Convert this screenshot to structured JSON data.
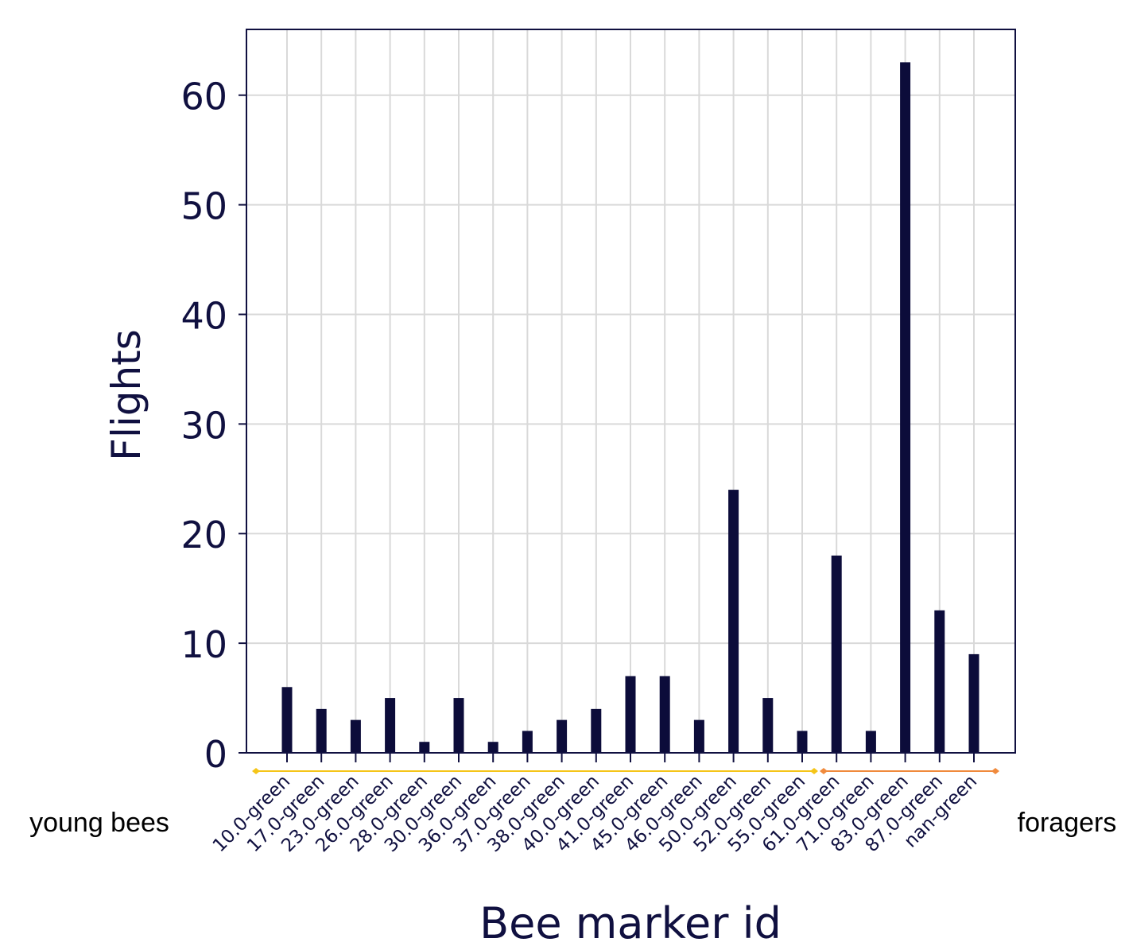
{
  "chart_data": {
    "type": "bar",
    "title": "",
    "xlabel": "Bee marker id",
    "ylabel": "Flights",
    "ylim": [
      0,
      66
    ],
    "yticks": [
      0,
      10,
      20,
      30,
      40,
      50,
      60
    ],
    "grid": true,
    "categories": [
      "10.0-green",
      "17.0-green",
      "23.0-green",
      "26.0-green",
      "28.0-green",
      "30.0-green",
      "36.0-green",
      "37.0-green",
      "38.0-green",
      "40.0-green",
      "41.0-green",
      "45.0-green",
      "46.0-green",
      "50.0-green",
      "52.0-green",
      "55.0-green",
      "61.0-green",
      "71.0-green",
      "83.0-green",
      "87.0-green",
      "nan-green"
    ],
    "values": [
      6,
      4,
      3,
      5,
      1,
      5,
      1,
      2,
      3,
      4,
      7,
      7,
      3,
      24,
      5,
      2,
      18,
      2,
      63,
      13,
      9
    ],
    "groups": [
      {
        "label": "young bees",
        "from": "10.0-green",
        "to": "55.0-green",
        "color": "#f5c518"
      },
      {
        "label": "foragers",
        "from": "61.0-green",
        "to": "nan-green",
        "color": "#f08a3c"
      }
    ]
  },
  "colors": {
    "bar": "#0c0c3a",
    "axis": "#101040",
    "grid": "#d9d9d9"
  }
}
